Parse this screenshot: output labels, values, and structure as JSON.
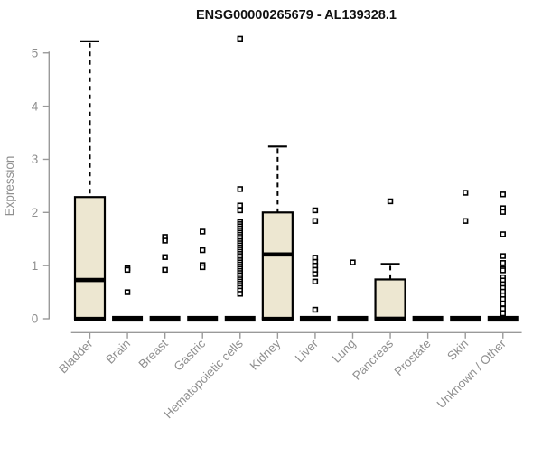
{
  "chart_data": {
    "type": "boxplot",
    "title": "ENSG00000265679 - AL139328.1",
    "ylabel": "Expression",
    "xlabel": "",
    "ylim": [
      0,
      5
    ],
    "yticks": [
      0,
      1,
      2,
      3,
      4,
      5
    ],
    "grid": false,
    "legend": false,
    "box_fill_color": "#EDE7D1",
    "box_border_color": "#000000",
    "axis_color": "#9a9a9a",
    "label_color": "#8f8f8f",
    "title_color": "#111111",
    "categories": [
      "Bladder",
      "Brain",
      "Breast",
      "Gastric",
      "Hematopoietic cells",
      "Kidney",
      "Liver",
      "Lung",
      "Pancreas",
      "Prostate",
      "Skin",
      "Unknown / Other"
    ],
    "boxes": [
      {
        "category": "Bladder",
        "q1": 0,
        "median": 0.73,
        "q3": 2.29,
        "whisker_low": 0,
        "whisker_high": 5.22,
        "outliers": []
      },
      {
        "category": "Brain",
        "q1": 0,
        "median": 0,
        "q3": 0,
        "whisker_low": 0,
        "whisker_high": 0,
        "outliers": [
          0.95,
          0.92,
          0.5
        ]
      },
      {
        "category": "Breast",
        "q1": 0,
        "median": 0,
        "q3": 0,
        "whisker_low": 0,
        "whisker_high": 0,
        "outliers": [
          1.54,
          1.47,
          1.16,
          0.92
        ]
      },
      {
        "category": "Gastric",
        "q1": 0,
        "median": 0,
        "q3": 0,
        "whisker_low": 0,
        "whisker_high": 0,
        "outliers": [
          1.64,
          1.29,
          1.01,
          0.97
        ]
      },
      {
        "category": "Hematopoietic cells",
        "q1": 0,
        "median": 0,
        "q3": 0,
        "whisker_low": 0,
        "whisker_high": 0,
        "outliers": [
          5.27,
          2.44,
          2.13,
          2.04,
          1.82,
          1.78,
          1.74,
          1.7,
          1.66,
          1.62,
          1.58,
          1.54,
          1.5,
          1.46,
          1.42,
          1.38,
          1.34,
          1.3,
          1.26,
          1.22,
          1.18,
          1.14,
          1.1,
          1.06,
          1.02,
          0.98,
          0.94,
          0.9,
          0.86,
          0.82,
          0.78,
          0.74,
          0.7,
          0.66,
          0.62,
          0.58,
          0.53,
          0.47
        ]
      },
      {
        "category": "Kidney",
        "q1": 0,
        "median": 1.21,
        "q3": 2.0,
        "whisker_low": 0,
        "whisker_high": 3.24,
        "outliers": []
      },
      {
        "category": "Liver",
        "q1": 0,
        "median": 0,
        "q3": 0,
        "whisker_low": 0,
        "whisker_high": 0,
        "outliers": [
          2.04,
          1.84,
          1.15,
          1.07,
          1.0,
          0.92,
          0.84,
          0.7,
          0.17
        ]
      },
      {
        "category": "Lung",
        "q1": 0,
        "median": 0,
        "q3": 0,
        "whisker_low": 0,
        "whisker_high": 0,
        "outliers": [
          1.06
        ]
      },
      {
        "category": "Pancreas",
        "q1": 0,
        "median": 0,
        "q3": 0.74,
        "whisker_low": 0,
        "whisker_high": 1.03,
        "outliers": [
          2.21
        ]
      },
      {
        "category": "Prostate",
        "q1": 0,
        "median": 0,
        "q3": 0,
        "whisker_low": 0,
        "whisker_high": 0,
        "outliers": []
      },
      {
        "category": "Skin",
        "q1": 0,
        "median": 0,
        "q3": 0,
        "whisker_low": 0,
        "whisker_high": 0,
        "outliers": [
          2.37,
          1.84
        ]
      },
      {
        "category": "Unknown / Other",
        "q1": 0,
        "median": 0,
        "q3": 0,
        "whisker_low": 0,
        "whisker_high": 0,
        "outliers": [
          2.34,
          2.08,
          2.01,
          1.59,
          1.18,
          1.05,
          0.94,
          0.91,
          0.78,
          0.72,
          0.65,
          0.58,
          0.51,
          0.44,
          0.37,
          0.28,
          0.19,
          0.1
        ]
      }
    ]
  }
}
